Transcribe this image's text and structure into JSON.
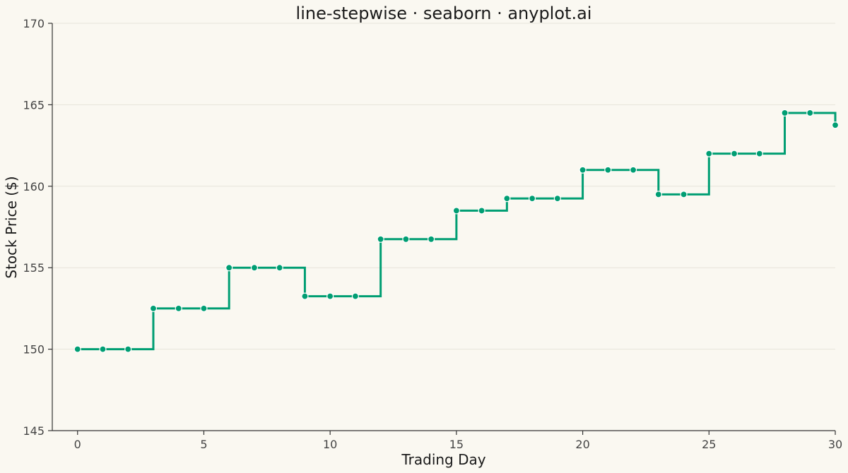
{
  "chart_data": {
    "type": "line",
    "drawstyle": "steps-post",
    "title": "line-stepwise · seaborn · anyplot.ai",
    "xlabel": "Trading Day",
    "ylabel": "Stock Price ($)",
    "xlim": [
      -1,
      30
    ],
    "ylim": [
      145,
      170
    ],
    "xticks": [
      0,
      5,
      10,
      15,
      20,
      25,
      30
    ],
    "yticks": [
      145,
      150,
      155,
      160,
      165,
      170
    ],
    "grid": "horizontal",
    "legend": "none",
    "colors": {
      "line": "#009E73",
      "background": "#FAF8F1",
      "grid": "#E6E3DA",
      "marker_edge": "#FFFFFF"
    },
    "series": [
      {
        "x": [
          0,
          1,
          2,
          3,
          4,
          5,
          6,
          7,
          8,
          9,
          10,
          11,
          12,
          13,
          14,
          15,
          16,
          17,
          18,
          19,
          20,
          21,
          22,
          23,
          24,
          25,
          26,
          27,
          28,
          29,
          30
        ],
        "values": [
          150,
          150,
          150,
          152.5,
          152.5,
          152.5,
          155,
          155,
          155,
          153.25,
          153.25,
          153.25,
          156.75,
          156.75,
          156.75,
          158.5,
          158.5,
          159.25,
          159.25,
          159.25,
          161,
          161,
          161,
          159.5,
          159.5,
          162,
          162,
          162,
          164.5,
          164.5,
          163.75
        ]
      }
    ]
  }
}
